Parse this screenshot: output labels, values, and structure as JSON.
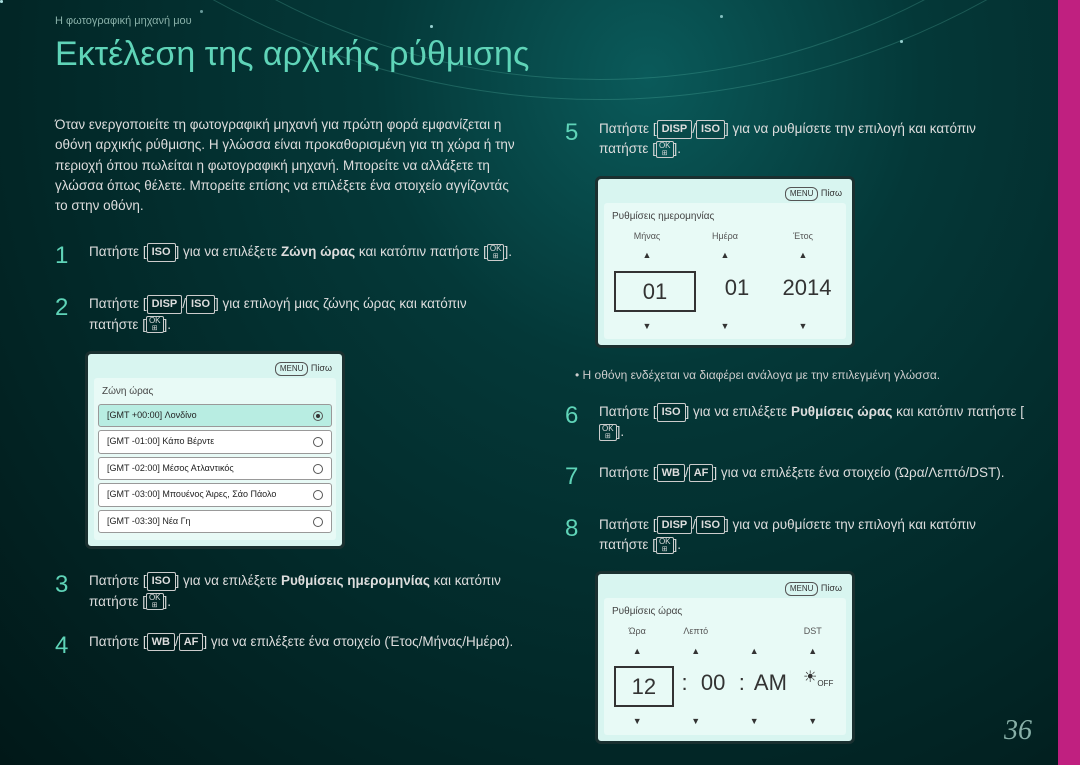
{
  "breadcrumb": "Η φωτογραφική μηχανή μου",
  "title": "Εκτέλεση της αρχικής ρύθμισης",
  "intro": "Όταν ενεργοποιείτε τη φωτογραφική μηχανή για πρώτη φορά εμφανίζεται η οθόνη αρχικής ρύθμισης. Η γλώσσα είναι προκαθορισμένη για τη χώρα ή την περιοχή όπου πωλείται η φωτογραφική μηχανή. Μπορείτε να αλλάξετε τη γλώσσα όπως θέλετε. Μπορείτε επίσης να επιλέξετε ένα στοιχείο αγγίζοντάς το στην οθόνη.",
  "buttons": {
    "ISO": "ISO",
    "DISP": "DISP",
    "WB": "WB",
    "AF": "AF",
    "MENU": "MENU"
  },
  "steps": {
    "s1a": "Πατήστε [",
    "s1b": "] για να επιλέξετε ",
    "s1bold": "Ζώνη ώρας",
    "s1c": " και κατόπιν πατήστε [",
    "s1d": "].",
    "s2a": "Πατήστε [",
    "s2b": "] για επιλογή μιας ζώνης ώρας και κατόπιν πατήστε [",
    "s2c": "].",
    "s3a": "Πατήστε [",
    "s3b": "] για να επιλέξετε ",
    "s3bold": "Ρυθμίσεις ημερομηνίας",
    "s3c": " και κατόπιν πατήστε [",
    "s3d": "].",
    "s4a": "Πατήστε [",
    "s4b": "] για να επιλέξετε ένα στοιχείο (Έτος/Μήνας/Ημέρα).",
    "s5a": "Πατήστε [",
    "s5b": "] για να ρυθμίσετε την επιλογή και κατόπιν πατήστε [",
    "s5c": "].",
    "s6a": "Πατήστε [",
    "s6b": "] για να επιλέξετε ",
    "s6bold": "Ρυθμίσεις ώρας",
    "s6c": " και κατόπιν πατήστε [",
    "s6d": "].",
    "s7a": "Πατήστε [",
    "s7b": "] για να επιλέξετε ένα στοιχείο (Ώρα/Λεπτό/DST).",
    "s8a": "Πατήστε [",
    "s8b": "] για να ρυθμίσετε την επιλογή και κατόπιν πατήστε [",
    "s8c": "]."
  },
  "note": "Η οθόνη ενδέχεται να διαφέρει ανάλογα με την επιλεγμένη γλώσσα.",
  "tz_screen": {
    "back": "Πίσω",
    "title": "Ζώνη ώρας",
    "items": [
      "[GMT +00:00] Λονδίνο",
      "[GMT -01:00] Κάπο Βέρντε",
      "[GMT -02:00] Μέσος Ατλαντικός",
      "[GMT -03:00] Μπουένος Άιρες, Σάο Πάολο",
      "[GMT -03:30] Νέα Γη"
    ]
  },
  "date_screen": {
    "back": "Πίσω",
    "title": "Ρυθμίσεις ημερομηνίας",
    "labels": [
      "Μήνας",
      "Ημέρα",
      "Έτος"
    ],
    "values": [
      "01",
      "01",
      "2014"
    ]
  },
  "time_screen": {
    "back": "Πίσω",
    "title": "Ρυθμίσεις ώρας",
    "labels": [
      "Ώρα",
      "Λεπτό",
      "",
      "DST"
    ],
    "values": [
      "12",
      "00",
      "AM"
    ]
  },
  "pageNum": "36"
}
